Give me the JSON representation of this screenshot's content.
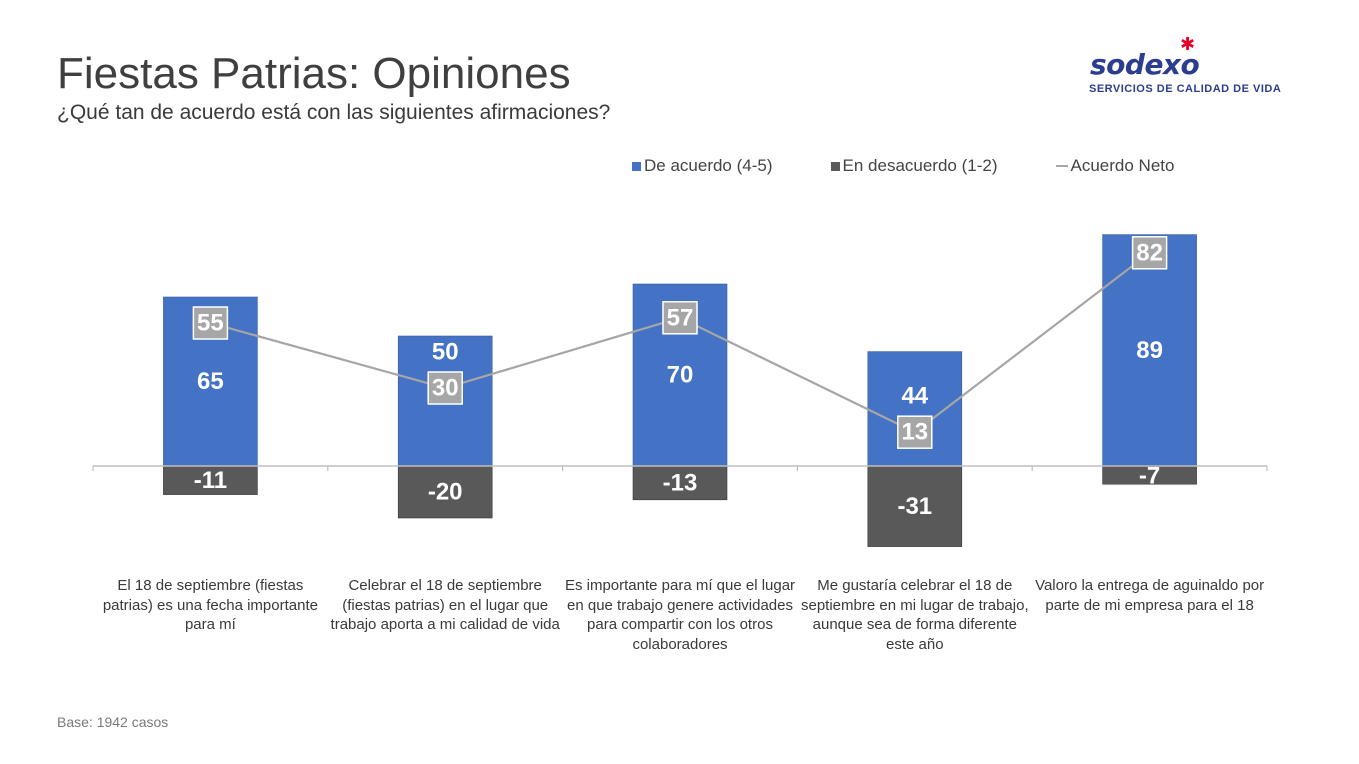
{
  "title": "Fiestas Patrias: Opiniones",
  "subtitle": "¿Qué tan de acuerdo está con las siguientes afirmaciones?",
  "logo": {
    "brand": "sodexo",
    "tagline": "SERVICIOS DE CALIDAD DE VIDA"
  },
  "footer": "Base: 1942 casos",
  "chart_data": {
    "type": "bar",
    "stacking": "diverging",
    "categories": [
      "El 18 de septiembre (fiestas patrias) es una fecha importante para mí",
      "Celebrar el 18 de septiembre (fiestas patrias) en el lugar que trabajo aporta a mi calidad de vida",
      "Es importante para mí que el lugar en que trabajo genere actividades para compartir con los otros colaboradores",
      "Me gustaría celebrar el 18 de septiembre en mi lugar de trabajo, aunque sea de forma diferente este año",
      "Valoro la entrega de aguinaldo por parte de mi empresa para el 18"
    ],
    "series": [
      {
        "name": "De acuerdo (4-5)",
        "type": "bar",
        "color": "#4472c4",
        "values": [
          65,
          50,
          70,
          44,
          89
        ]
      },
      {
        "name": "En desacuerdo (1-2)",
        "type": "bar",
        "color": "#595959",
        "values": [
          -11,
          -20,
          -13,
          -31,
          -7
        ]
      },
      {
        "name": "Acuerdo Neto",
        "type": "line",
        "color": "#a6a6a6",
        "values": [
          55,
          30,
          57,
          13,
          82
        ]
      }
    ],
    "ylim": [
      -35,
      95
    ],
    "grid": false,
    "legend_position": "top-right",
    "xlabel": "",
    "ylabel": ""
  }
}
